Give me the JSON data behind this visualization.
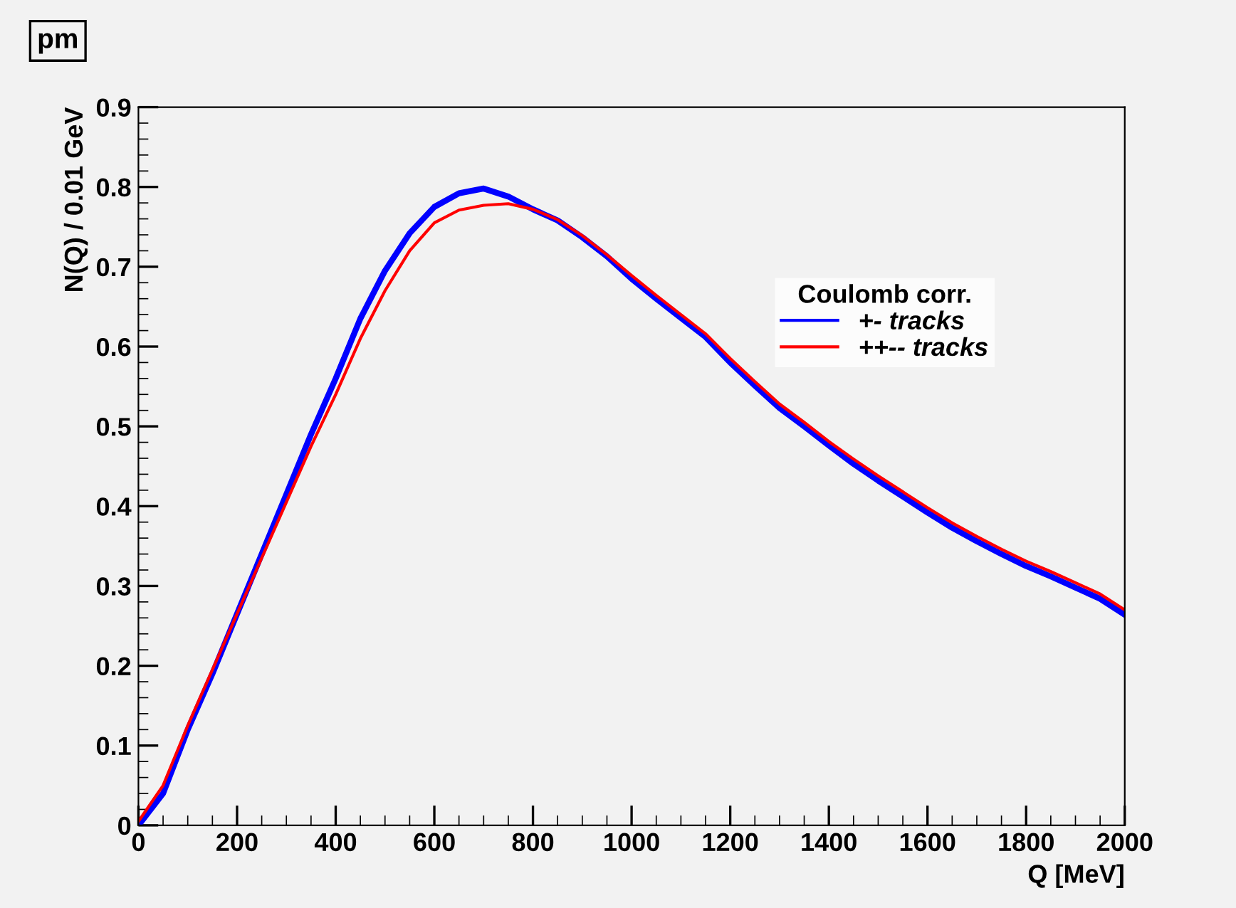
{
  "chart_data": {
    "type": "line",
    "title": "pm",
    "xlabel": "Q [MeV]",
    "ylabel": "N(Q) / 0.01 GeV",
    "legend_title": "Coulomb corr.",
    "x": [
      0,
      50,
      100,
      150,
      200,
      250,
      300,
      350,
      400,
      450,
      500,
      550,
      600,
      650,
      700,
      750,
      800,
      850,
      900,
      950,
      1000,
      1050,
      1100,
      1150,
      1200,
      1250,
      1300,
      1350,
      1400,
      1450,
      1500,
      1550,
      1600,
      1650,
      1700,
      1750,
      1800,
      1850,
      1900,
      1950,
      2000
    ],
    "series": [
      {
        "name": "+- tracks",
        "color": "#0000ff",
        "values": [
          0.0,
          0.04,
          0.12,
          0.19,
          0.265,
          0.34,
          0.415,
          0.49,
          0.56,
          0.635,
          0.695,
          0.742,
          0.775,
          0.792,
          0.798,
          0.788,
          0.772,
          0.758,
          0.737,
          0.713,
          0.685,
          0.66,
          0.636,
          0.612,
          0.58,
          0.551,
          0.523,
          0.5,
          0.476,
          0.453,
          0.432,
          0.412,
          0.392,
          0.373,
          0.356,
          0.34,
          0.325,
          0.312,
          0.298,
          0.284,
          0.264
        ]
      },
      {
        "name": "++-- tracks",
        "color": "#ff0000",
        "values": [
          0.005,
          0.05,
          0.125,
          0.195,
          0.265,
          0.335,
          0.405,
          0.475,
          0.54,
          0.61,
          0.67,
          0.72,
          0.755,
          0.771,
          0.777,
          0.779,
          0.772,
          0.759,
          0.739,
          0.715,
          0.689,
          0.664,
          0.64,
          0.616,
          0.585,
          0.556,
          0.528,
          0.505,
          0.481,
          0.459,
          0.438,
          0.418,
          0.398,
          0.379,
          0.362,
          0.346,
          0.331,
          0.318,
          0.304,
          0.29,
          0.27
        ]
      }
    ],
    "xlim": [
      0,
      2000
    ],
    "xticks": [
      0,
      200,
      400,
      600,
      800,
      1000,
      1200,
      1400,
      1600,
      1800,
      2000
    ],
    "ylim": [
      0,
      0.9
    ],
    "yticks": [
      0,
      0.1,
      0.2,
      0.3,
      0.4,
      0.5,
      0.6,
      0.7,
      0.8,
      0.9
    ],
    "grid": false,
    "legend": "right",
    "marker": "none",
    "line_style": "solid"
  }
}
